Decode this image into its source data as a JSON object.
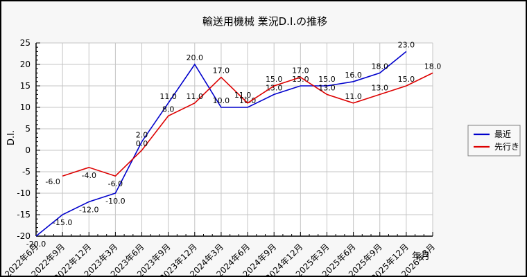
{
  "title": "輸送用機械 業況D.I.の推移",
  "ylabel": "D.I.",
  "xlabel": "年月",
  "chart_data": {
    "type": "line",
    "x": [
      "2022年6月",
      "2022年9月",
      "2022年12月",
      "2023年3月",
      "2023年6月",
      "2023年9月",
      "2023年12月",
      "2024年3月",
      "2024年6月",
      "2024年9月",
      "2024年12月",
      "2025年3月",
      "2025年6月",
      "2025年9月",
      "2025年12月",
      "2026年3月"
    ],
    "ylim": [
      -20,
      25
    ],
    "ytick_step": 5,
    "y_minor_step": 1,
    "x_minor_per_major": 3,
    "grid": true,
    "legend_position": "outside-right",
    "label_format": "one-decimal",
    "colors": {
      "grid": "#c4c4c4",
      "axis": "#000000",
      "plot_bg": "#ffffff",
      "page_bg": "#f7f7f7"
    },
    "series": [
      {
        "name": "最近",
        "color": "#0000cc",
        "values": [
          -20,
          -15,
          -12,
          -10,
          2,
          11,
          20,
          10,
          10,
          13,
          15,
          15,
          16,
          18,
          23,
          null
        ],
        "label_pos": [
          "below",
          "below",
          "below",
          "below",
          "above",
          "above",
          "above",
          "above",
          "above",
          "above",
          "above",
          "above",
          "above",
          "above",
          "above",
          null
        ]
      },
      {
        "name": "先行き",
        "color": "#dd0000",
        "values": [
          null,
          -6,
          -4,
          -6,
          0,
          8,
          11,
          17,
          11,
          15,
          17,
          13,
          11,
          13,
          15,
          18
        ],
        "label_pos": [
          null,
          "below-left",
          "below",
          "below",
          "above",
          "above",
          "above",
          "above",
          "above-left",
          "above",
          "above",
          "above",
          "above",
          "above",
          "above",
          "above"
        ]
      }
    ]
  }
}
